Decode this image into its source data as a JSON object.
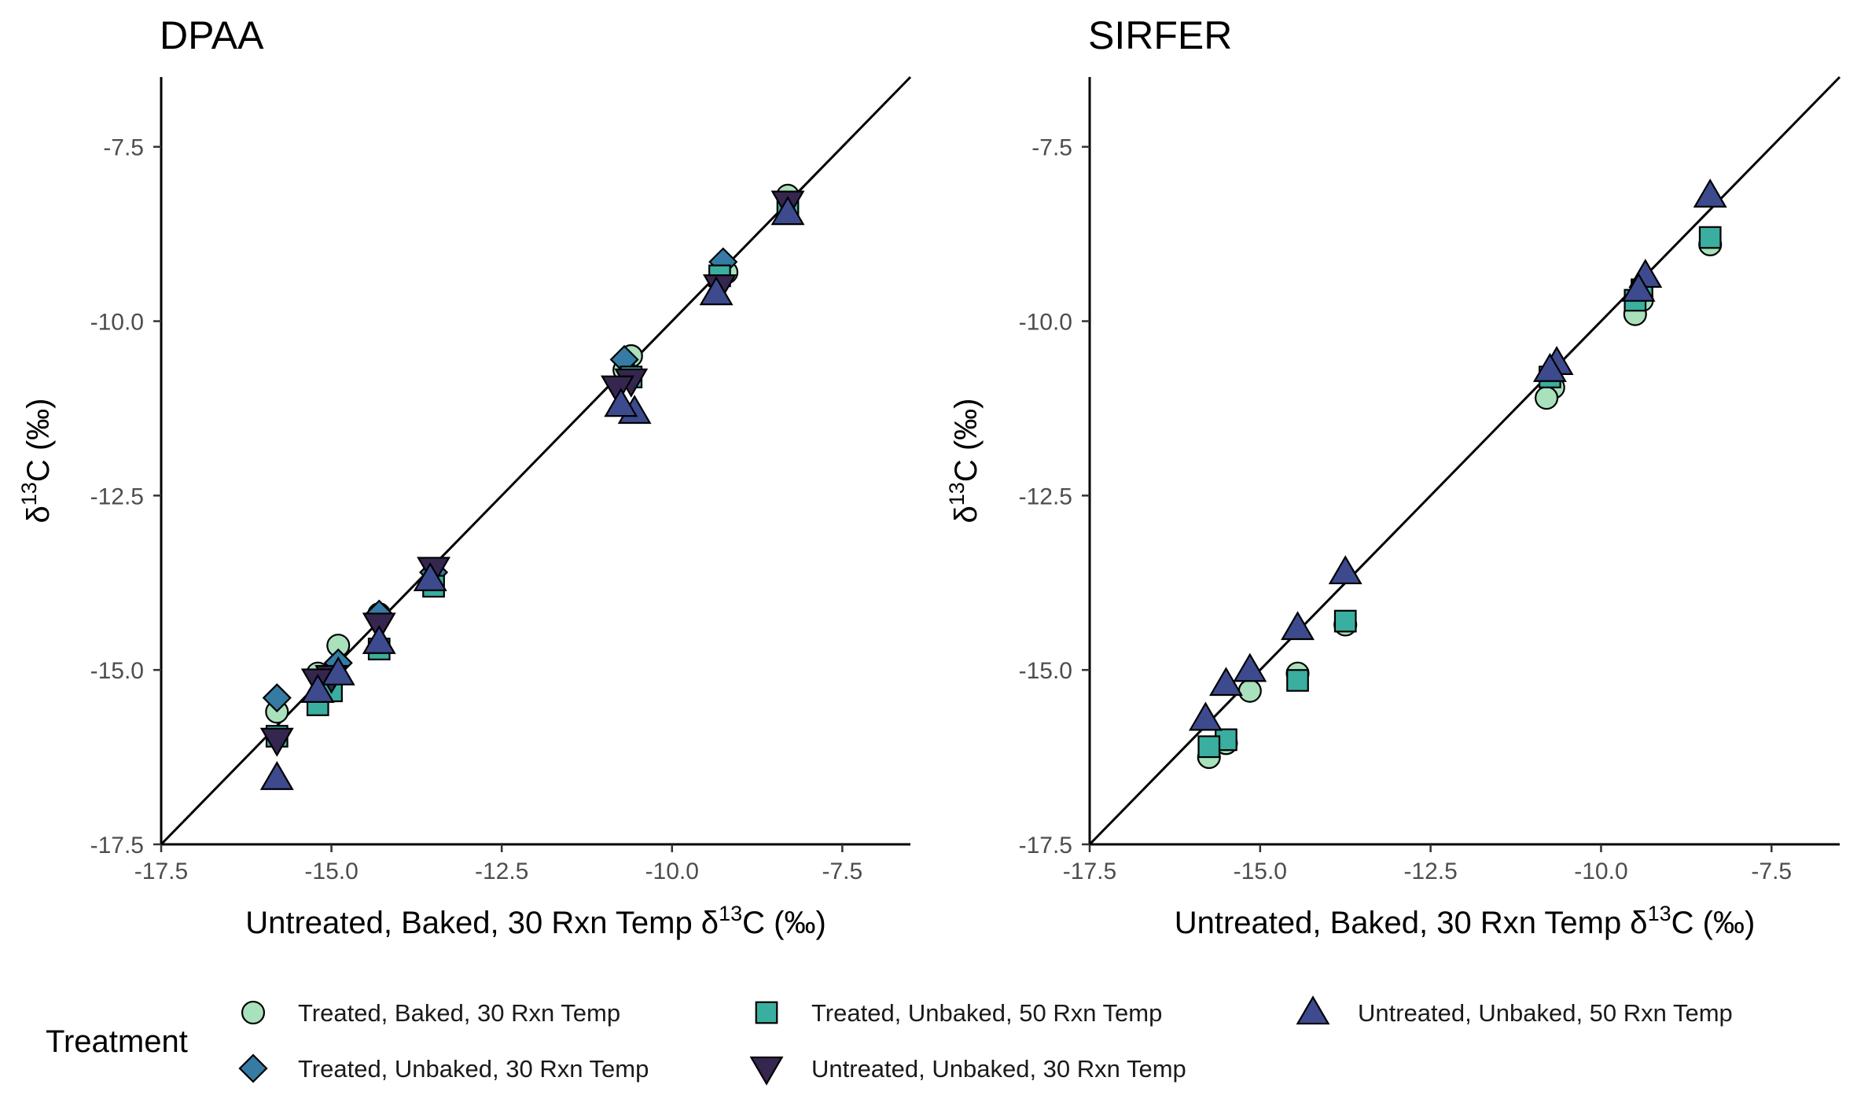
{
  "legend": {
    "title": "Treatment",
    "entries": [
      {
        "name": "Treated, Baked, 30 Rxn Temp",
        "shape": "circle-icon",
        "color": "#a8e1bc"
      },
      {
        "name": "Treated, Unbaked, 30 Rxn Temp",
        "shape": "diamond-icon",
        "color": "#357ba3"
      },
      {
        "name": "Treated, Unbaked, 50 Rxn Temp",
        "shape": "square-icon",
        "color": "#3aae9f"
      },
      {
        "name": "Untreated, Unbaked, 30 Rxn Temp",
        "shape": "triangle-down-icon",
        "color": "#35264f"
      },
      {
        "name": "Untreated, Unbaked, 50 Rxn Temp",
        "shape": "triangle-up-icon",
        "color": "#3e4a8e"
      }
    ],
    "placement": "bottom"
  },
  "chart_data": [
    {
      "type": "scatter",
      "title": "DPAA",
      "xlabel_prefix": "Untreated, Baked, 30 Rxn Temp δ",
      "xlabel_sup": "13",
      "xlabel_suffix": "C (‰)",
      "ylabel_prefix": "δ",
      "ylabel_sup": "13",
      "ylabel_suffix": "C (‰)",
      "xlim": [
        -17.5,
        -6.5
      ],
      "ylim": [
        -17.5,
        -6.5
      ],
      "xticks": [
        "-17.5",
        "-15.0",
        "-12.5",
        "-10.0",
        "-7.5"
      ],
      "yticks": [
        "-17.5",
        "-15.0",
        "-12.5",
        "-10.0",
        "-7.5"
      ],
      "reference_line": "y = x",
      "grid": false,
      "series": [
        {
          "name": "Treated, Baked, 30 Rxn Temp",
          "points": [
            [
              -8.3,
              -8.2
            ],
            [
              -9.2,
              -9.3
            ],
            [
              -9.3,
              -9.4
            ],
            [
              -10.6,
              -10.5
            ],
            [
              -10.7,
              -10.7
            ],
            [
              -14.3,
              -14.2
            ],
            [
              -14.9,
              -14.65
            ],
            [
              -15.2,
              -15.05
            ],
            [
              -15.8,
              -15.6
            ]
          ]
        },
        {
          "name": "Treated, Unbaked, 30 Rxn Temp",
          "points": [
            [
              -9.25,
              -9.15
            ],
            [
              -10.7,
              -10.55
            ],
            [
              -13.5,
              -13.6
            ],
            [
              -14.3,
              -14.2
            ],
            [
              -14.9,
              -14.9
            ],
            [
              -15.8,
              -15.4
            ]
          ]
        },
        {
          "name": "Treated, Unbaked, 50 Rxn Temp",
          "points": [
            [
              -8.3,
              -8.35
            ],
            [
              -9.3,
              -9.35
            ],
            [
              -10.6,
              -10.8
            ],
            [
              -13.5,
              -13.8
            ],
            [
              -14.3,
              -14.7
            ],
            [
              -15.0,
              -15.3
            ],
            [
              -15.2,
              -15.5
            ],
            [
              -15.8,
              -15.95
            ]
          ]
        },
        {
          "name": "Untreated, Unbaked, 30 Rxn Temp",
          "points": [
            [
              -8.3,
              -8.3
            ],
            [
              -9.3,
              -9.5
            ],
            [
              -10.6,
              -10.85
            ],
            [
              -10.8,
              -10.95
            ],
            [
              -13.5,
              -13.55
            ],
            [
              -14.3,
              -14.35
            ],
            [
              -15.0,
              -15.1
            ],
            [
              -15.2,
              -15.15
            ],
            [
              -15.8,
              -16.0
            ]
          ]
        },
        {
          "name": "Untreated, Unbaked, 50 Rxn Temp",
          "points": [
            [
              -8.3,
              -8.45
            ],
            [
              -9.35,
              -9.6
            ],
            [
              -10.55,
              -11.3
            ],
            [
              -10.75,
              -11.2
            ],
            [
              -13.55,
              -13.7
            ],
            [
              -14.3,
              -14.6
            ],
            [
              -14.9,
              -15.05
            ],
            [
              -15.2,
              -15.3
            ],
            [
              -15.8,
              -16.55
            ]
          ]
        }
      ]
    },
    {
      "type": "scatter",
      "title": "SIRFER",
      "xlabel_prefix": "Untreated, Baked, 30 Rxn Temp δ",
      "xlabel_sup": "13",
      "xlabel_suffix": "C (‰)",
      "ylabel_prefix": "δ",
      "ylabel_sup": "13",
      "ylabel_suffix": "C (‰)",
      "xlim": [
        -17.5,
        -6.5
      ],
      "ylim": [
        -17.5,
        -6.5
      ],
      "xticks": [
        "-17.5",
        "-15.0",
        "-12.5",
        "-10.0",
        "-7.5"
      ],
      "yticks": [
        "-17.5",
        "-15.0",
        "-12.5",
        "-10.0",
        "-7.5"
      ],
      "reference_line": "y = x",
      "grid": false,
      "series": [
        {
          "name": "Treated, Baked, 30 Rxn Temp",
          "points": [
            [
              -8.4,
              -8.9
            ],
            [
              -9.4,
              -9.7
            ],
            [
              -9.5,
              -9.9
            ],
            [
              -10.7,
              -10.95
            ],
            [
              -10.8,
              -11.1
            ],
            [
              -13.75,
              -14.35
            ],
            [
              -14.45,
              -15.05
            ],
            [
              -15.15,
              -15.3
            ],
            [
              -15.5,
              -16.05
            ],
            [
              -15.75,
              -16.25
            ]
          ]
        },
        {
          "name": "Treated, Unbaked, 30 Rxn Temp",
          "points": []
        },
        {
          "name": "Treated, Unbaked, 50 Rxn Temp",
          "points": [
            [
              -8.4,
              -8.8
            ],
            [
              -9.4,
              -9.55
            ],
            [
              -9.5,
              -9.7
            ],
            [
              -10.75,
              -10.8
            ],
            [
              -13.75,
              -14.3
            ],
            [
              -14.45,
              -15.15
            ],
            [
              -15.5,
              -16.0
            ],
            [
              -15.75,
              -16.1
            ]
          ]
        },
        {
          "name": "Untreated, Unbaked, 30 Rxn Temp",
          "points": []
        },
        {
          "name": "Untreated, Unbaked, 50 Rxn Temp",
          "points": [
            [
              -8.4,
              -8.2
            ],
            [
              -9.35,
              -9.35
            ],
            [
              -9.45,
              -9.55
            ],
            [
              -10.65,
              -10.6
            ],
            [
              -10.75,
              -10.7
            ],
            [
              -13.75,
              -13.6
            ],
            [
              -14.45,
              -14.4
            ],
            [
              -15.15,
              -15.0
            ],
            [
              -15.5,
              -15.2
            ],
            [
              -15.8,
              -15.7
            ]
          ]
        }
      ]
    }
  ]
}
